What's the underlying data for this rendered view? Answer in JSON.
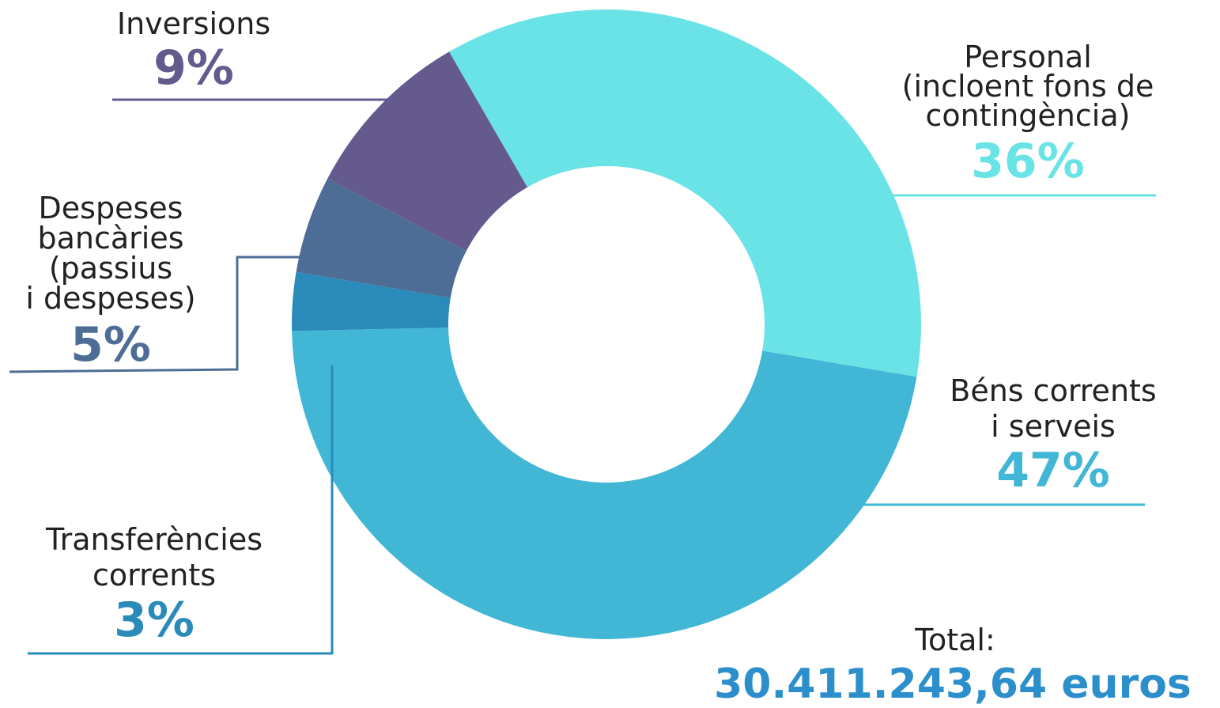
{
  "chart_data": {
    "type": "pie",
    "donut": true,
    "slices": [
      {
        "key": "personal",
        "label_lines": [
          "Personal",
          "(incloent fons de",
          "contingència)"
        ],
        "pct_text": "36%",
        "value": 36,
        "color": "#6AE3E6"
      },
      {
        "key": "bens",
        "label_lines": [
          "Béns corrents",
          "i serveis"
        ],
        "pct_text": "47%",
        "value": 47,
        "color": "#41B6D5"
      },
      {
        "key": "transf",
        "label_lines": [
          "Transferències",
          "corrents"
        ],
        "pct_text": "3%",
        "value": 3,
        "color": "#2A8BBB"
      },
      {
        "key": "bancaries",
        "label_lines": [
          "Despeses",
          "bancàries",
          "(passius",
          "i despeses)"
        ],
        "pct_text": "5%",
        "value": 5,
        "color": "#4E6D96"
      },
      {
        "key": "inversions",
        "label_lines": [
          "Inversions"
        ],
        "pct_text": "9%",
        "value": 9,
        "color": "#645A8E"
      }
    ],
    "total_label": "Total:",
    "total_value": "30.411.243,64 euros",
    "total_color": "#2C8FCB"
  }
}
